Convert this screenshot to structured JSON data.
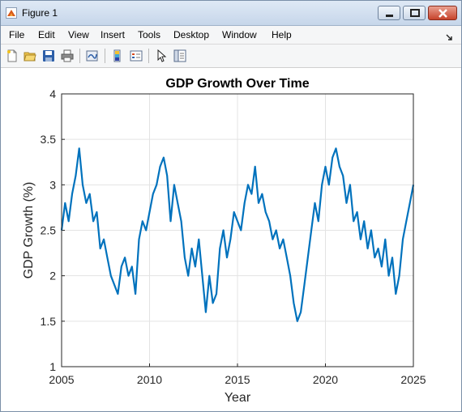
{
  "window": {
    "title": "Figure 1"
  },
  "menu": [
    {
      "label": "File"
    },
    {
      "label": "Edit"
    },
    {
      "label": "View"
    },
    {
      "label": "Insert"
    },
    {
      "label": "Tools"
    },
    {
      "label": "Desktop"
    },
    {
      "label": "Window"
    },
    {
      "label": "Help"
    }
  ],
  "toolbar": {
    "buttons": [
      {
        "icon": "new-figure-icon"
      },
      {
        "icon": "open-file-icon"
      },
      {
        "icon": "save-icon"
      },
      {
        "icon": "print-icon"
      },
      {
        "icon": "link-plot-icon"
      },
      {
        "icon": "colorbar-icon"
      },
      {
        "icon": "legend-icon"
      },
      {
        "icon": "pointer-icon"
      },
      {
        "icon": "property-editor-icon"
      }
    ]
  },
  "colors": {
    "line": "#0072bd",
    "grid": "#e3e3e3",
    "axis": "#262626"
  },
  "chart_data": {
    "type": "line",
    "title": "GDP Growth Over Time",
    "xlabel": "Year",
    "ylabel": "GDP Growth (%)",
    "xlim": [
      2005,
      2025
    ],
    "ylim": [
      1,
      4
    ],
    "xticks": [
      2005,
      2010,
      2015,
      2020,
      2025
    ],
    "yticks": [
      1,
      1.5,
      2,
      2.5,
      3,
      3.5,
      4
    ],
    "grid": true,
    "series": [
      {
        "x": [
          2005.0,
          2005.2,
          2005.4,
          2005.6,
          2005.8,
          2006.0,
          2006.2,
          2006.4,
          2006.6,
          2006.8,
          2007.0,
          2007.2,
          2007.4,
          2007.6,
          2007.8,
          2008.0,
          2008.2,
          2008.4,
          2008.6,
          2008.8,
          2009.0,
          2009.2,
          2009.4,
          2009.6,
          2009.8,
          2010.0,
          2010.2,
          2010.4,
          2010.6,
          2010.8,
          2011.0,
          2011.2,
          2011.4,
          2011.6,
          2011.8,
          2012.0,
          2012.2,
          2012.4,
          2012.6,
          2012.8,
          2013.0,
          2013.2,
          2013.4,
          2013.6,
          2013.8,
          2014.0,
          2014.2,
          2014.4,
          2014.6,
          2014.8,
          2015.0,
          2015.2,
          2015.4,
          2015.6,
          2015.8,
          2016.0,
          2016.2,
          2016.4,
          2016.6,
          2016.8,
          2017.0,
          2017.2,
          2017.4,
          2017.6,
          2017.8,
          2018.0,
          2018.2,
          2018.4,
          2018.6,
          2018.8,
          2019.0,
          2019.2,
          2019.4,
          2019.6,
          2019.8,
          2020.0,
          2020.2,
          2020.4,
          2020.6,
          2020.8,
          2021.0,
          2021.2,
          2021.4,
          2021.6,
          2021.8,
          2022.0,
          2022.2,
          2022.4,
          2022.6,
          2022.8,
          2023.0,
          2023.2,
          2023.4,
          2023.6,
          2023.8,
          2024.0,
          2024.2,
          2024.4,
          2024.6,
          2024.8,
          2025.0
        ],
        "y": [
          2.5,
          2.8,
          2.6,
          2.9,
          3.1,
          3.4,
          3.0,
          2.8,
          2.9,
          2.6,
          2.7,
          2.3,
          2.4,
          2.2,
          2.0,
          1.9,
          1.8,
          2.1,
          2.2,
          2.0,
          2.1,
          1.8,
          2.4,
          2.6,
          2.5,
          2.7,
          2.9,
          3.0,
          3.2,
          3.3,
          3.1,
          2.6,
          3.0,
          2.8,
          2.6,
          2.2,
          2.0,
          2.3,
          2.1,
          2.4,
          2.0,
          1.6,
          2.0,
          1.7,
          1.8,
          2.3,
          2.5,
          2.2,
          2.4,
          2.7,
          2.6,
          2.5,
          2.8,
          3.0,
          2.9,
          3.2,
          2.8,
          2.9,
          2.7,
          2.6,
          2.4,
          2.5,
          2.3,
          2.4,
          2.2,
          2.0,
          1.7,
          1.5,
          1.6,
          1.9,
          2.2,
          2.5,
          2.8,
          2.6,
          3.0,
          3.2,
          3.0,
          3.3,
          3.4,
          3.2,
          3.1,
          2.8,
          3.0,
          2.6,
          2.7,
          2.4,
          2.6,
          2.3,
          2.5,
          2.2,
          2.3,
          2.1,
          2.4,
          2.0,
          2.2,
          1.8,
          2.0,
          2.4,
          2.6,
          2.8,
          3.0
        ]
      }
    ]
  }
}
